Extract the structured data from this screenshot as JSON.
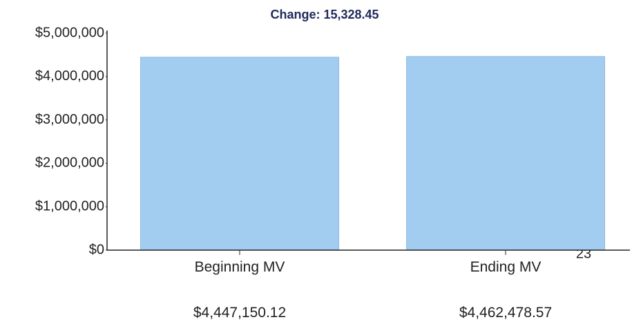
{
  "chart_data": {
    "type": "bar",
    "title": "Change: 15,328.45",
    "categories": [
      "Beginning MV",
      "Ending MV"
    ],
    "values": [
      4447150.12,
      4462478.57
    ],
    "value_labels": [
      "$4,447,150.12",
      "$4,462,478.57"
    ],
    "color": "#a3cdf0",
    "ylim": [
      0,
      5000000
    ],
    "yticks": [
      {
        "value": 0,
        "label": "$0"
      },
      {
        "value": 1000000,
        "label": "$1,000,000"
      },
      {
        "value": 2000000,
        "label": "$2,000,000"
      },
      {
        "value": 3000000,
        "label": "$3,000,000"
      },
      {
        "value": 4000000,
        "label": "$4,000,000"
      },
      {
        "value": 5000000,
        "label": "$5,000,000"
      }
    ],
    "grid": false,
    "annotations": [
      "23"
    ]
  }
}
